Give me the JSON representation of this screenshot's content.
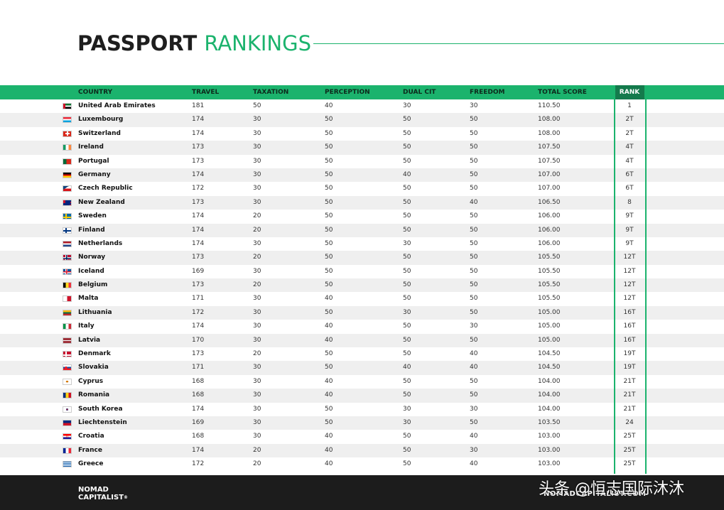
{
  "title": {
    "part1": "PASSPORT",
    "part2": "RANKINGS"
  },
  "colors": {
    "accent": "#1bb36d",
    "rank_header": "#147a4c",
    "footer": "#1c1c1c",
    "row_alt": "#efefef"
  },
  "headers": {
    "country": "COUNTRY",
    "travel": "TRAVEL",
    "taxation": "TAXATION",
    "perception": "PERCEPTION",
    "dual_cit": "DUAL CIT",
    "freedom": "FREEDOM",
    "total_score": "TOTAL SCORE",
    "rank": "RANK"
  },
  "rows": [
    {
      "country": "United Arab Emirates",
      "flag": "uae",
      "travel": "181",
      "taxation": "50",
      "perception": "40",
      "dual_cit": "30",
      "freedom": "30",
      "total": "110.50",
      "rank": "1"
    },
    {
      "country": "Luxembourg",
      "flag": "luxembourg",
      "travel": "174",
      "taxation": "30",
      "perception": "50",
      "dual_cit": "50",
      "freedom": "50",
      "total": "108.00",
      "rank": "2T"
    },
    {
      "country": "Switzerland",
      "flag": "switzerland",
      "travel": "174",
      "taxation": "30",
      "perception": "50",
      "dual_cit": "50",
      "freedom": "50",
      "total": "108.00",
      "rank": "2T"
    },
    {
      "country": "Ireland",
      "flag": "ireland",
      "travel": "173",
      "taxation": "30",
      "perception": "50",
      "dual_cit": "50",
      "freedom": "50",
      "total": "107.50",
      "rank": "4T"
    },
    {
      "country": "Portugal",
      "flag": "portugal",
      "travel": "173",
      "taxation": "30",
      "perception": "50",
      "dual_cit": "50",
      "freedom": "50",
      "total": "107.50",
      "rank": "4T"
    },
    {
      "country": "Germany",
      "flag": "germany",
      "travel": "174",
      "taxation": "30",
      "perception": "50",
      "dual_cit": "40",
      "freedom": "50",
      "total": "107.00",
      "rank": "6T"
    },
    {
      "country": "Czech Republic",
      "flag": "czech",
      "travel": "172",
      "taxation": "30",
      "perception": "50",
      "dual_cit": "50",
      "freedom": "50",
      "total": "107.00",
      "rank": "6T"
    },
    {
      "country": "New Zealand",
      "flag": "newzealand",
      "travel": "173",
      "taxation": "30",
      "perception": "50",
      "dual_cit": "50",
      "freedom": "40",
      "total": "106.50",
      "rank": "8"
    },
    {
      "country": "Sweden",
      "flag": "sweden",
      "travel": "174",
      "taxation": "20",
      "perception": "50",
      "dual_cit": "50",
      "freedom": "50",
      "total": "106.00",
      "rank": "9T"
    },
    {
      "country": "Finland",
      "flag": "finland",
      "travel": "174",
      "taxation": "20",
      "perception": "50",
      "dual_cit": "50",
      "freedom": "50",
      "total": "106.00",
      "rank": "9T"
    },
    {
      "country": "Netherlands",
      "flag": "netherlands",
      "travel": "174",
      "taxation": "30",
      "perception": "50",
      "dual_cit": "30",
      "freedom": "50",
      "total": "106.00",
      "rank": "9T"
    },
    {
      "country": "Norway",
      "flag": "norway",
      "travel": "173",
      "taxation": "20",
      "perception": "50",
      "dual_cit": "50",
      "freedom": "50",
      "total": "105.50",
      "rank": "12T"
    },
    {
      "country": "Iceland",
      "flag": "iceland",
      "travel": "169",
      "taxation": "30",
      "perception": "50",
      "dual_cit": "50",
      "freedom": "50",
      "total": "105.50",
      "rank": "12T"
    },
    {
      "country": "Belgium",
      "flag": "belgium",
      "travel": "173",
      "taxation": "20",
      "perception": "50",
      "dual_cit": "50",
      "freedom": "50",
      "total": "105.50",
      "rank": "12T"
    },
    {
      "country": "Malta",
      "flag": "malta",
      "travel": "171",
      "taxation": "30",
      "perception": "40",
      "dual_cit": "50",
      "freedom": "50",
      "total": "105.50",
      "rank": "12T"
    },
    {
      "country": "Lithuania",
      "flag": "lithuania",
      "travel": "172",
      "taxation": "30",
      "perception": "50",
      "dual_cit": "30",
      "freedom": "50",
      "total": "105.00",
      "rank": "16T"
    },
    {
      "country": "Italy",
      "flag": "italy",
      "travel": "174",
      "taxation": "30",
      "perception": "40",
      "dual_cit": "50",
      "freedom": "30",
      "total": "105.00",
      "rank": "16T"
    },
    {
      "country": "Latvia",
      "flag": "latvia",
      "travel": "170",
      "taxation": "30",
      "perception": "40",
      "dual_cit": "50",
      "freedom": "50",
      "total": "105.00",
      "rank": "16T"
    },
    {
      "country": "Denmark",
      "flag": "denmark",
      "travel": "173",
      "taxation": "20",
      "perception": "50",
      "dual_cit": "50",
      "freedom": "40",
      "total": "104.50",
      "rank": "19T"
    },
    {
      "country": "Slovakia",
      "flag": "slovakia",
      "travel": "171",
      "taxation": "30",
      "perception": "50",
      "dual_cit": "40",
      "freedom": "40",
      "total": "104.50",
      "rank": "19T"
    },
    {
      "country": "Cyprus",
      "flag": "cyprus",
      "travel": "168",
      "taxation": "30",
      "perception": "40",
      "dual_cit": "50",
      "freedom": "50",
      "total": "104.00",
      "rank": "21T"
    },
    {
      "country": "Romania",
      "flag": "romania",
      "travel": "168",
      "taxation": "30",
      "perception": "40",
      "dual_cit": "50",
      "freedom": "50",
      "total": "104.00",
      "rank": "21T"
    },
    {
      "country": "South Korea",
      "flag": "southkorea",
      "travel": "174",
      "taxation": "30",
      "perception": "50",
      "dual_cit": "30",
      "freedom": "30",
      "total": "104.00",
      "rank": "21T"
    },
    {
      "country": "Liechtenstein",
      "flag": "liechtenstein",
      "travel": "169",
      "taxation": "30",
      "perception": "50",
      "dual_cit": "30",
      "freedom": "50",
      "total": "103.50",
      "rank": "24"
    },
    {
      "country": "Croatia",
      "flag": "croatia",
      "travel": "168",
      "taxation": "30",
      "perception": "40",
      "dual_cit": "50",
      "freedom": "40",
      "total": "103.00",
      "rank": "25T"
    },
    {
      "country": "France",
      "flag": "france",
      "travel": "174",
      "taxation": "20",
      "perception": "40",
      "dual_cit": "50",
      "freedom": "30",
      "total": "103.00",
      "rank": "25T"
    },
    {
      "country": "Greece",
      "flag": "greece",
      "travel": "172",
      "taxation": "20",
      "perception": "40",
      "dual_cit": "50",
      "freedom": "40",
      "total": "103.00",
      "rank": "25T"
    }
  ],
  "footer": {
    "logo_line1": "NOMAD",
    "logo_line2": "CAPITALIST",
    "logo_mark": "®",
    "site": "NOMADCAPITALIST.COM",
    "watermark": "头条 @恒志国际沐沐"
  }
}
